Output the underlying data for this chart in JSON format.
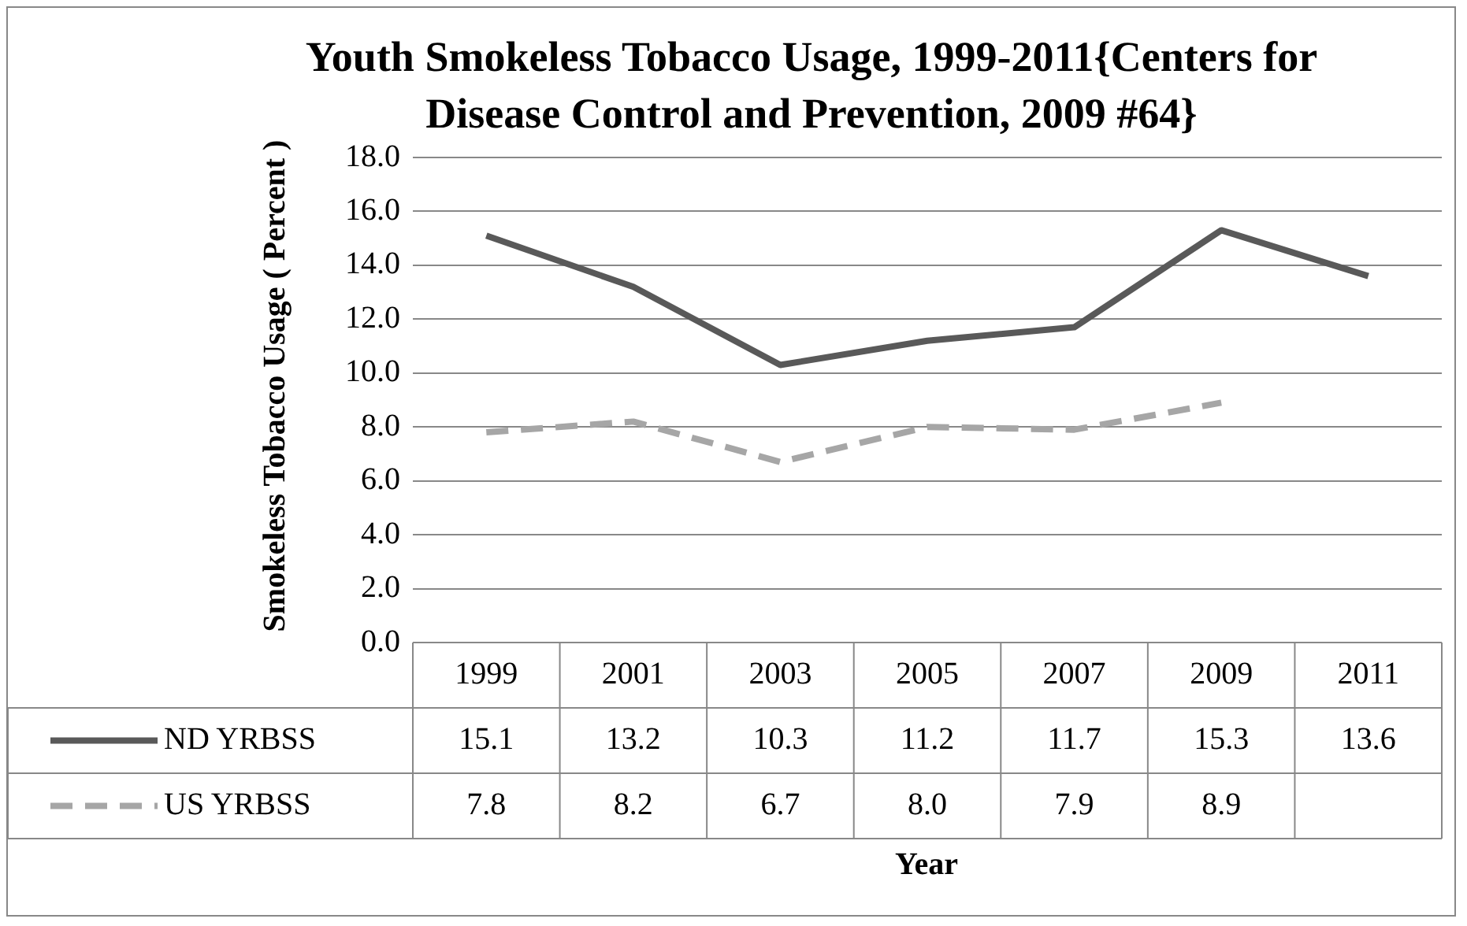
{
  "chart_data": {
    "type": "line",
    "title": "Youth Smokeless Tobacco Usage, 1999-2011{Centers for Disease Control and Prevention, 2009 #64}",
    "xlabel": "Year",
    "ylabel": "Smokeless Tobacco Usage ( Percent )",
    "categories": [
      "1999",
      "2001",
      "2003",
      "2005",
      "2007",
      "2009",
      "2011"
    ],
    "series": [
      {
        "name": "ND YRBSS",
        "color": "#595959",
        "line_style": "solid",
        "values": [
          15.1,
          13.2,
          10.3,
          11.2,
          11.7,
          15.3,
          13.6
        ],
        "value_labels": [
          "15.1",
          "13.2",
          "10.3",
          "11.2",
          "11.7",
          "15.3",
          "13.6"
        ]
      },
      {
        "name": "US YRBSS",
        "color": "#a6a6a6",
        "line_style": "dashed",
        "values": [
          7.8,
          8.2,
          6.7,
          8.0,
          7.9,
          8.9,
          null
        ],
        "value_labels": [
          "7.8",
          "8.2",
          "6.7",
          "8.0",
          "7.9",
          "8.9",
          null
        ]
      }
    ],
    "ylim": [
      0,
      18
    ],
    "yticks": [
      {
        "value": 0,
        "label": "0.0"
      },
      {
        "value": 2,
        "label": "2.0"
      },
      {
        "value": 4,
        "label": "4.0"
      },
      {
        "value": 6,
        "label": "6.0"
      },
      {
        "value": 8,
        "label": "8.0"
      },
      {
        "value": 10,
        "label": "10.0"
      },
      {
        "value": 12,
        "label": "12.0"
      },
      {
        "value": 14,
        "label": "14.0"
      },
      {
        "value": 16,
        "label": "16.0"
      },
      {
        "value": 18,
        "label": "18.0"
      }
    ],
    "grid": "y",
    "legend": "bottom left",
    "marker": "none"
  }
}
